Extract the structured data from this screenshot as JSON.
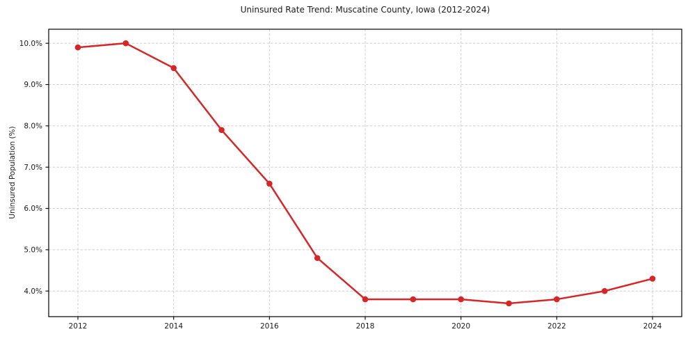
{
  "chart_data": {
    "type": "line",
    "title": "Uninsured Rate Trend: Muscatine County, Iowa (2012-2024)",
    "xlabel": "",
    "ylabel": "Uninsured Population (%)",
    "x": [
      2012,
      2013,
      2014,
      2015,
      2016,
      2017,
      2018,
      2019,
      2020,
      2021,
      2022,
      2023,
      2024
    ],
    "values": [
      9.9,
      10.0,
      9.4,
      7.9,
      6.6,
      4.8,
      3.8,
      3.8,
      3.8,
      3.7,
      3.8,
      4.0,
      4.3
    ],
    "xlim": [
      2011.39,
      2024.61
    ],
    "ylim": [
      3.38,
      10.34
    ],
    "xticks": {
      "values": [
        2012,
        2014,
        2016,
        2018,
        2020,
        2022,
        2024
      ],
      "labels": [
        "2012",
        "2014",
        "2016",
        "2018",
        "2020",
        "2022",
        "2024"
      ]
    },
    "yticks": {
      "values": [
        4,
        5,
        6,
        7,
        8,
        9,
        10
      ],
      "labels": [
        "4.0%",
        "5.0%",
        "6.0%",
        "7.0%",
        "8.0%",
        "9.0%",
        "10.0%"
      ]
    },
    "grid": true,
    "grid_style": "dashed",
    "legend": false,
    "marker": "circle",
    "colors": {
      "line": "#d62728",
      "marker": "#d62728",
      "grid": "#cfcfcf",
      "axis": "#000000",
      "text": "#1a1a1a",
      "background": "#ffffff"
    }
  }
}
